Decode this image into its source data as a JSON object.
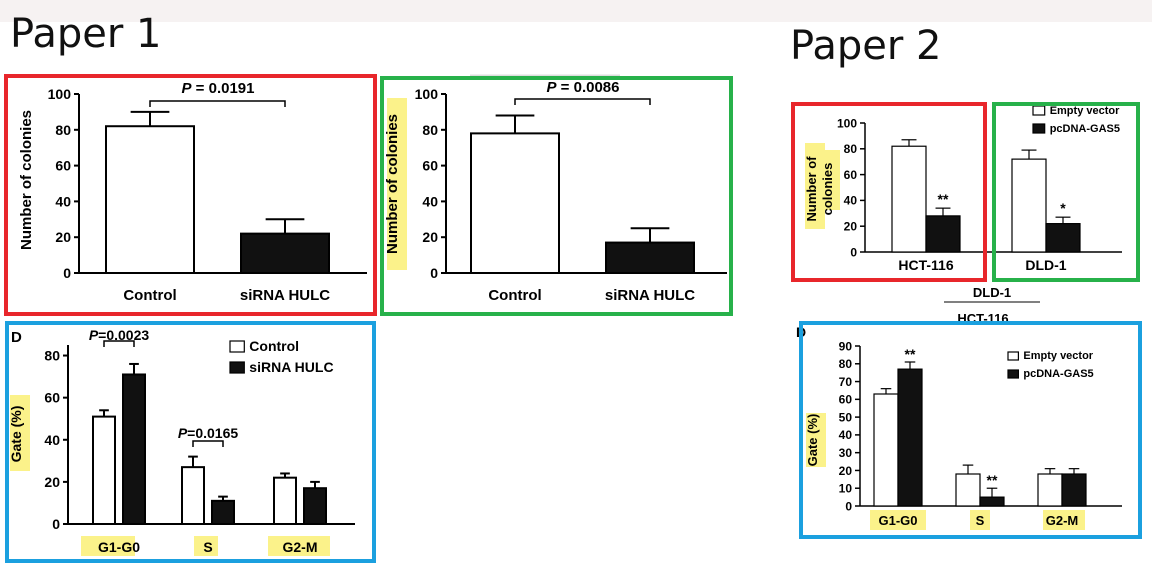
{
  "headings": {
    "paper1": "Paper 1",
    "paper2": "Paper 2"
  },
  "colors": {
    "red_box": "#e8262b",
    "green_box": "#27b14a",
    "blue_box": "#1ba0df",
    "highlight": "#fbf28a",
    "bar_filled": "#111111",
    "bar_open": "#ffffff"
  },
  "chart_data": [
    {
      "id": "p1-colony-a",
      "type": "bar",
      "categories": [
        "Control",
        "siRNA HULC"
      ],
      "values": [
        82,
        22
      ],
      "errors": [
        8,
        8
      ],
      "fills": [
        "open",
        "filled"
      ],
      "ylabel": "Number of colonies",
      "ylim": [
        0,
        100
      ],
      "yticks": [
        "0",
        "20",
        "40",
        "60",
        "80",
        "100"
      ],
      "annotation": {
        "label": "P",
        "value": " = 0.0191"
      }
    },
    {
      "id": "p1-colony-b",
      "type": "bar",
      "categories": [
        "Control",
        "siRNA HULC"
      ],
      "values": [
        78,
        17
      ],
      "errors": [
        10,
        8
      ],
      "fills": [
        "open",
        "filled"
      ],
      "ylabel": "Number of colonies",
      "ylim": [
        0,
        100
      ],
      "yticks": [
        "0",
        "20",
        "40",
        "60",
        "80",
        "100"
      ],
      "annotation": {
        "label": "P",
        "value": " = 0.0086"
      }
    },
    {
      "id": "p1-gate",
      "type": "bar",
      "panel_letter": "D",
      "categories": [
        "G1-G0",
        "S",
        "G2-M"
      ],
      "series": [
        {
          "name": "Control",
          "values": [
            51,
            27,
            22
          ],
          "errors": [
            3,
            5,
            2
          ]
        },
        {
          "name": "siRNA HULC",
          "values": [
            71,
            11,
            17
          ],
          "errors": [
            5,
            2,
            3
          ]
        }
      ],
      "ylabel": "Gate (%)",
      "ylim": [
        0,
        85
      ],
      "yticks": [
        "0",
        "20",
        "40",
        "60",
        "80"
      ],
      "annotations": [
        {
          "label": "P",
          "value": "=0.0023"
        },
        {
          "label": "P",
          "value": "=0.0165"
        }
      ],
      "legend": "top-right"
    },
    {
      "id": "p2-colony",
      "type": "bar",
      "categories": [
        "HCT-116",
        "DLD-1"
      ],
      "series": [
        {
          "name": "Empty vector",
          "values": [
            82,
            72
          ],
          "errors": [
            5,
            7
          ]
        },
        {
          "name": "pcDNA-GAS5",
          "values": [
            28,
            22
          ],
          "errors": [
            6,
            5
          ]
        }
      ],
      "significance": [
        "**",
        "*"
      ],
      "ylabel": "Number of colonies",
      "ylim": [
        0,
        100
      ],
      "yticks": [
        "0",
        "20",
        "40",
        "60",
        "80",
        "100"
      ],
      "legend": "top-right"
    },
    {
      "id": "p2-gate",
      "type": "bar",
      "panel_letter": "D",
      "categories": [
        "G1-G0",
        "S",
        "G2-M"
      ],
      "series": [
        {
          "name": "Empty vector",
          "values": [
            63,
            18,
            18
          ],
          "errors": [
            3,
            5,
            3
          ]
        },
        {
          "name": "pcDNA-GAS5",
          "values": [
            77,
            5,
            18
          ],
          "errors": [
            4,
            5,
            3
          ]
        }
      ],
      "significance": [
        "**",
        "**",
        ""
      ],
      "ylabel": "Gate (%)",
      "ylim": [
        0,
        90
      ],
      "yticks": [
        "0",
        "10",
        "20",
        "30",
        "40",
        "50",
        "60",
        "70",
        "80",
        "90"
      ],
      "legend": "top-right"
    }
  ],
  "fragment": {
    "line1": "DLD-1",
    "line2": "HCT-116"
  }
}
